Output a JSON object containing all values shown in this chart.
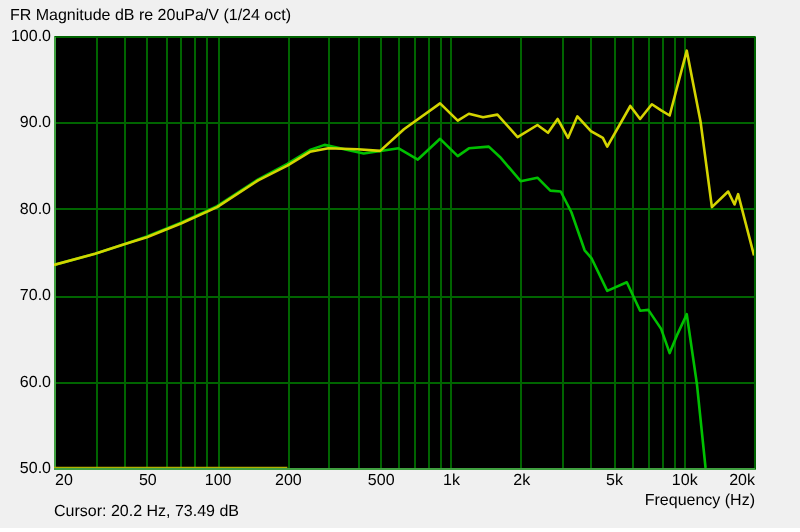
{
  "chart_data": {
    "type": "line",
    "title": "FR Magnitude dB re 20uPa/V (1/24 oct)",
    "xlabel": "Frequency (Hz)",
    "annotations": [
      "Cursor: 20.2 Hz, 73.49 dB"
    ],
    "log": "x",
    "grid": true,
    "line_style": "solid",
    "marker": "none",
    "xlim": [
      20,
      20000
    ],
    "ylim": [
      50,
      100
    ],
    "xticks": [
      20,
      {
        "value": 30,
        "label": null
      },
      {
        "value": 40,
        "label": null
      },
      50,
      {
        "value": 60,
        "label": null
      },
      {
        "value": 70,
        "label": null
      },
      {
        "value": 80,
        "label": null
      },
      {
        "value": 90,
        "label": null
      },
      100,
      200,
      {
        "value": 300,
        "label": null
      },
      {
        "value": 400,
        "label": null
      },
      500,
      {
        "value": 600,
        "label": null
      },
      {
        "value": 700,
        "label": null
      },
      {
        "value": 800,
        "label": null
      },
      {
        "value": 900,
        "label": null
      },
      {
        "value": 1000,
        "label": "1k"
      },
      {
        "value": 2000,
        "label": "2k"
      },
      {
        "value": 3000,
        "label": null
      },
      {
        "value": 4000,
        "label": null
      },
      {
        "value": 5000,
        "label": "5k"
      },
      {
        "value": 6000,
        "label": null
      },
      {
        "value": 7000,
        "label": null
      },
      {
        "value": 8000,
        "label": null
      },
      {
        "value": 9000,
        "label": null
      },
      {
        "value": 10000,
        "label": "10k"
      },
      {
        "value": 20000,
        "label": "20k"
      }
    ],
    "yticks": [
      {
        "value": 50,
        "label": "50.0"
      },
      {
        "value": 60,
        "label": "60.0"
      },
      {
        "value": 70,
        "label": "70.0"
      },
      {
        "value": 80,
        "label": "80.0"
      },
      {
        "value": 90,
        "label": "90.0"
      },
      {
        "value": 100,
        "label": "100.0"
      }
    ],
    "series": [
      {
        "color": "#00c000",
        "x": [
          20,
          30,
          40,
          50,
          70,
          100,
          150,
          200,
          250,
          289,
          425,
          600,
          725,
          903,
          1075,
          1200,
          1460,
          1630,
          2000,
          2360,
          2680,
          2970,
          3300,
          3760,
          4020,
          4700,
          5700,
          6500,
          7050,
          8000,
          8700,
          9400,
          10300,
          11400,
          12400
        ],
        "values": [
          73.5,
          74.8,
          75.9,
          76.8,
          78.4,
          80.3,
          83.4,
          85.2,
          86.8,
          87.4,
          86.4,
          87.0,
          85.7,
          88.1,
          86.1,
          87.0,
          87.2,
          86.0,
          83.2,
          83.6,
          82.1,
          82.0,
          79.6,
          75.2,
          74.3,
          70.5,
          71.5,
          68.2,
          68.3,
          66.1,
          63.3,
          65.5,
          67.8,
          59.6,
          50
        ]
      },
      {
        "color": "#d4d400",
        "x": [
          20,
          30,
          40,
          50,
          70,
          100,
          150,
          200,
          250,
          300,
          400,
          500,
          632,
          903,
          1075,
          1200,
          1380,
          1590,
          1940,
          2360,
          2620,
          2880,
          3190,
          3500,
          4000,
          4500,
          4700,
          5900,
          6500,
          7300,
          8000,
          8700,
          10300,
          11800,
          13200,
          15500,
          16500,
          17100,
          20000
        ],
        "values": [
          73.5,
          74.8,
          75.9,
          76.7,
          78.3,
          80.2,
          83.3,
          85.0,
          86.6,
          87.0,
          86.9,
          86.7,
          89.2,
          92.2,
          90.2,
          91.0,
          90.6,
          90.9,
          88.3,
          89.7,
          88.8,
          90.4,
          88.2,
          90.7,
          89.0,
          88.2,
          87.2,
          91.9,
          90.4,
          92.1,
          91.4,
          90.8,
          98.3,
          90.1,
          80.2,
          82.0,
          80.5,
          81.7,
          74.6
        ]
      },
      {
        "color": "#b0b000",
        "x": [
          20,
          200
        ],
        "values": [
          50,
          50
        ]
      }
    ]
  }
}
